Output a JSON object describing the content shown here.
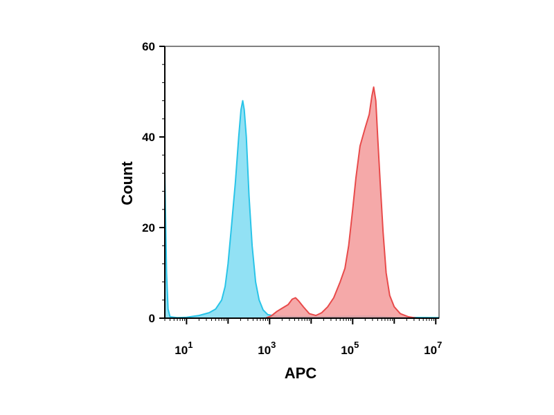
{
  "chart_data": {
    "type": "area",
    "xlabel": "APC",
    "ylabel": "Count",
    "x_scale": "log",
    "xlim": [
      3,
      12000000
    ],
    "ylim": [
      0,
      60
    ],
    "grid": false,
    "y_ticks": [
      {
        "value": 0,
        "label": "0"
      },
      {
        "value": 20,
        "label": "20"
      },
      {
        "value": 40,
        "label": "40"
      },
      {
        "value": 60,
        "label": "60"
      }
    ],
    "x_ticks": [
      {
        "value": 10,
        "base": "10",
        "exp": "1"
      },
      {
        "value": 1000,
        "base": "10",
        "exp": "3"
      },
      {
        "value": 100000,
        "base": "10",
        "exp": "5"
      },
      {
        "value": 10000000,
        "base": "10",
        "exp": "7"
      }
    ],
    "series": [
      {
        "color": "#29c4e8",
        "fill": "#7fdcf2",
        "points": [
          [
            3,
            32
          ],
          [
            3.3,
            10
          ],
          [
            3.6,
            2
          ],
          [
            4,
            0.3
          ],
          [
            6,
            0.1
          ],
          [
            10,
            0.2
          ],
          [
            20,
            0.6
          ],
          [
            35,
            1.2
          ],
          [
            50,
            2
          ],
          [
            70,
            4
          ],
          [
            85,
            7
          ],
          [
            100,
            12
          ],
          [
            120,
            20
          ],
          [
            150,
            30
          ],
          [
            180,
            40
          ],
          [
            205,
            46
          ],
          [
            225,
            48
          ],
          [
            245,
            46
          ],
          [
            275,
            40
          ],
          [
            320,
            27
          ],
          [
            380,
            16
          ],
          [
            460,
            8
          ],
          [
            560,
            4
          ],
          [
            700,
            1.8
          ],
          [
            900,
            0.8
          ],
          [
            1500,
            0.4
          ],
          [
            5000,
            0.3
          ],
          [
            30000,
            0.3
          ],
          [
            100000,
            0.4
          ],
          [
            300000,
            0.4
          ],
          [
            1000000,
            0.2
          ],
          [
            12000000,
            0.1
          ]
        ]
      },
      {
        "color": "#e84a4a",
        "fill": "#f39a9a",
        "points": [
          [
            800,
            0
          ],
          [
            1100,
            0.5
          ],
          [
            1500,
            1.5
          ],
          [
            2000,
            2.2
          ],
          [
            2800,
            3
          ],
          [
            3500,
            4.2
          ],
          [
            4200,
            4.5
          ],
          [
            5000,
            3.8
          ],
          [
            6500,
            2.5
          ],
          [
            9000,
            1
          ],
          [
            13000,
            0.6
          ],
          [
            18000,
            1.2
          ],
          [
            25000,
            2.5
          ],
          [
            35000,
            4.5
          ],
          [
            50000,
            8
          ],
          [
            65000,
            11
          ],
          [
            80000,
            16
          ],
          [
            100000,
            24
          ],
          [
            120000,
            31
          ],
          [
            150000,
            38
          ],
          [
            200000,
            42
          ],
          [
            250000,
            45
          ],
          [
            290000,
            49
          ],
          [
            320000,
            51
          ],
          [
            360000,
            48
          ],
          [
            400000,
            40
          ],
          [
            460000,
            30
          ],
          [
            540000,
            19
          ],
          [
            640000,
            10
          ],
          [
            780000,
            5
          ],
          [
            1000000,
            2.5
          ],
          [
            1400000,
            1
          ],
          [
            2200000,
            0.3
          ],
          [
            3500000,
            0
          ]
        ]
      }
    ]
  }
}
